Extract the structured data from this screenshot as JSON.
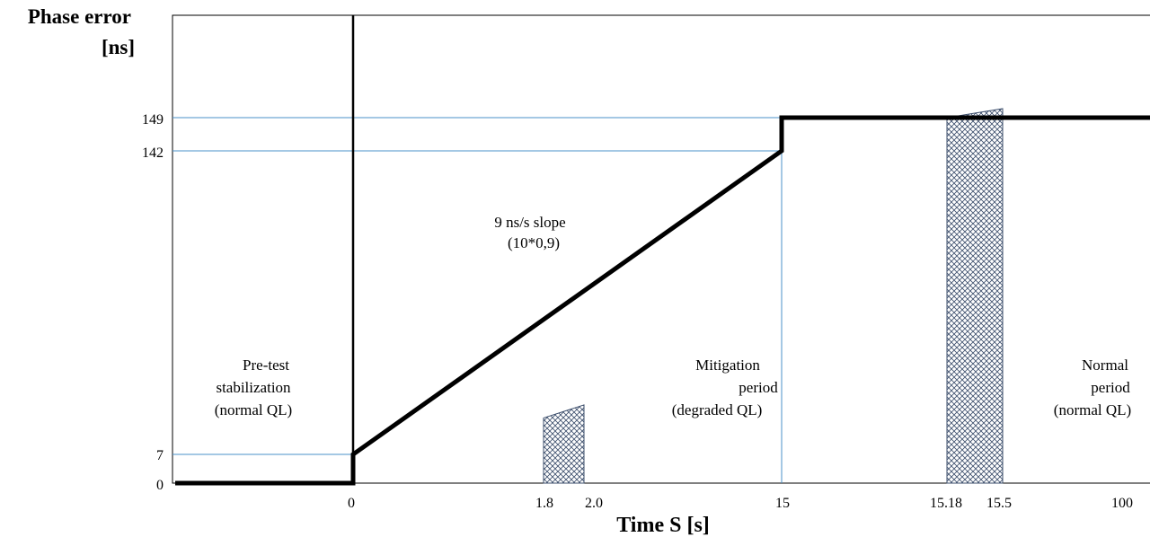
{
  "chart_data": {
    "type": "line",
    "ylabel": [
      "Phase error",
      "[ns]"
    ],
    "xlabel": "Time S [s]",
    "x_ticks": [
      "0",
      "1.8",
      "2.0",
      "15",
      "15.18",
      "15.5",
      "100"
    ],
    "y_ticks": [
      "0",
      "7",
      "142",
      "149"
    ],
    "series": [
      {
        "points": [
          {
            "x": "pre",
            "y": 0
          },
          {
            "x": 0,
            "y": 0
          },
          {
            "x": 0,
            "y": 7
          },
          {
            "x": 15,
            "y": 142
          },
          {
            "x": 15,
            "y": 149
          },
          {
            "x": 100,
            "y": 149
          }
        ]
      }
    ],
    "reference_lines": {
      "horizontal_y": [
        7,
        142,
        149
      ],
      "vertical_x": [
        15
      ]
    },
    "shaded_intervals": [
      {
        "from": 1.8,
        "to": 2.0,
        "pattern": "crosshatch"
      },
      {
        "from": 15.18,
        "to": 15.5,
        "pattern": "crosshatch"
      }
    ],
    "annotations": {
      "slope": [
        "9 ns/s slope",
        "(10*0,9)"
      ],
      "pretest": [
        "Pre-test",
        "stabilization",
        "(normal QL)"
      ],
      "mitigation": [
        "Mitigation",
        "period",
        "(degraded QL)"
      ],
      "normal": [
        "Normal",
        "period",
        "(normal QL)"
      ]
    },
    "colors": {
      "series": "#000000",
      "reference": "#4a90c8",
      "hatch": "#3b4d6b"
    }
  }
}
